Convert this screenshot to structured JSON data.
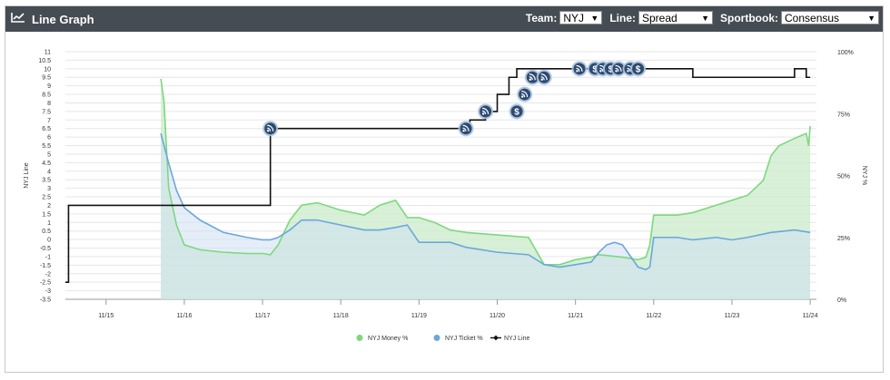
{
  "header": {
    "title": "Line Graph",
    "team_label": "Team:",
    "team_value": "NYJ",
    "line_label": "Line:",
    "line_value": "Spread",
    "sportsbook_label": "Sportbook:",
    "sportsbook_value": "Consensus"
  },
  "colors": {
    "money": "#7dd87d",
    "money_fill": "#cdeccd",
    "ticket": "#6aa7dc",
    "ticket_fill": "#cfe0f3",
    "overlap_fill": "#bfe3d6",
    "line": "#111111",
    "header_bg": "#454c53",
    "marker": "#2f4a70"
  },
  "chart_data": {
    "type": "line",
    "title": "",
    "ylabel_left": "NYJ Line",
    "ylabel_right": "NYJ %",
    "x_ticks": [
      "11/15",
      "11/16",
      "11/17",
      "11/18",
      "11/19",
      "11/20",
      "11/21",
      "11/22",
      "11/23",
      "11/24"
    ],
    "x_range": [
      -0.52,
      9.08
    ],
    "y_left_range": [
      -3.5,
      11
    ],
    "y_left_ticks": [
      "11",
      "10.5",
      "10",
      "9.5",
      "9",
      "8.5",
      "8",
      "7.5",
      "7",
      "6.5",
      "6",
      "5.5",
      "5",
      "4.5",
      "4",
      "3.5",
      "3",
      "2.5",
      "2",
      "1.5",
      "1",
      "0.5",
      "0",
      "-0.5",
      "-1",
      "-1.5",
      "-2",
      "-2.5",
      "-3",
      "-3.5"
    ],
    "y_right_range": [
      0,
      100
    ],
    "y_right_ticks": [
      "100%",
      "75%",
      "50%",
      "25%",
      "0%"
    ],
    "legend": [
      {
        "label": "NYJ Money %",
        "marker": "circle",
        "color_key": "money"
      },
      {
        "label": "NYJ Ticket %",
        "marker": "circle",
        "color_key": "ticket"
      },
      {
        "label": "NYJ Line",
        "marker": "line-diamond",
        "color_key": "line"
      }
    ],
    "series": [
      {
        "name": "NYJ Money %",
        "axis": "right",
        "x": [
          0.7,
          0.74,
          0.8,
          0.9,
          1.0,
          1.2,
          1.5,
          1.8,
          2.0,
          2.1,
          2.2,
          2.35,
          2.5,
          2.7,
          3.0,
          3.3,
          3.5,
          3.7,
          3.85,
          4.0,
          4.2,
          4.4,
          4.6,
          5.0,
          5.4,
          5.6,
          5.8,
          6.0,
          6.2,
          6.3,
          6.6,
          6.8,
          6.9,
          6.95,
          7.0,
          7.3,
          7.5,
          7.8,
          8.0,
          8.2,
          8.4,
          8.5,
          8.6,
          8.8,
          8.95,
          8.98,
          9.0
        ],
        "y": [
          89,
          80,
          45,
          30,
          22,
          20,
          19,
          18.5,
          18.5,
          18,
          22,
          32,
          38,
          39,
          36,
          34,
          38,
          40,
          33,
          33,
          31,
          28,
          27,
          26,
          25,
          14,
          14,
          16,
          17,
          18,
          17,
          16,
          17,
          22,
          34,
          34,
          35,
          38,
          40,
          42,
          48,
          58,
          62,
          65,
          67,
          62,
          70
        ]
      },
      {
        "name": "NYJ Ticket %",
        "axis": "right",
        "x": [
          0.7,
          0.8,
          0.9,
          1.0,
          1.2,
          1.5,
          1.8,
          2.0,
          2.1,
          2.2,
          2.35,
          2.5,
          2.7,
          3.0,
          3.3,
          3.5,
          3.7,
          3.85,
          4.0,
          4.2,
          4.4,
          4.6,
          5.0,
          5.4,
          5.6,
          5.8,
          6.0,
          6.2,
          6.3,
          6.4,
          6.5,
          6.6,
          6.8,
          6.9,
          6.95,
          7.0,
          7.3,
          7.5,
          7.8,
          8.0,
          8.2,
          8.5,
          8.8,
          9.0
        ],
        "y": [
          67,
          55,
          44,
          37,
          32,
          27,
          25,
          24,
          24,
          25,
          28,
          32,
          32,
          30,
          28,
          28,
          29,
          30,
          23,
          23,
          23,
          21,
          19,
          18,
          14,
          13,
          14,
          15,
          19,
          22,
          23,
          22,
          13,
          12,
          13,
          25,
          25,
          24,
          25,
          24,
          25,
          27,
          28,
          27
        ]
      },
      {
        "name": "NYJ Line",
        "axis": "left",
        "x": [
          -0.52,
          -0.48,
          -0.48,
          2.1,
          2.1,
          4.6,
          4.65,
          4.65,
          4.85,
          4.85,
          5.0,
          5.0,
          5.15,
          5.15,
          5.25,
          5.25,
          6.0,
          6.0,
          6.3,
          6.3,
          6.4,
          6.4,
          7.5,
          7.5,
          8.8,
          8.8,
          8.95,
          8.95,
          9.0
        ],
        "y": [
          -2.5,
          -2.5,
          2,
          2,
          6.5,
          6.5,
          6.5,
          7,
          7,
          7.5,
          7.5,
          8.5,
          8.5,
          9.5,
          9.5,
          10,
          10,
          10,
          10,
          10,
          10,
          10,
          10,
          9.5,
          9.5,
          10,
          10,
          9.5,
          9.5
        ]
      }
    ],
    "annotations": [
      {
        "x": 2.1,
        "y": 6.5,
        "icon": "rss-icon"
      },
      {
        "x": 4.6,
        "y": 6.5,
        "icon": "rss-icon"
      },
      {
        "x": 4.85,
        "y": 7.5,
        "icon": "rss-icon"
      },
      {
        "x": 5.25,
        "y": 7.5,
        "icon": "dollar-icon"
      },
      {
        "x": 5.35,
        "y": 8.5,
        "icon": "rss-icon"
      },
      {
        "x": 5.45,
        "y": 9.5,
        "icon": "rss-icon"
      },
      {
        "x": 5.6,
        "y": 9.5,
        "icon": "rss-icon"
      },
      {
        "x": 6.05,
        "y": 10,
        "icon": "rss-icon"
      },
      {
        "x": 6.25,
        "y": 10,
        "icon": "dollar-icon"
      },
      {
        "x": 6.35,
        "y": 10,
        "icon": "rss-icon"
      },
      {
        "x": 6.45,
        "y": 10,
        "icon": "dollar-icon"
      },
      {
        "x": 6.55,
        "y": 10,
        "icon": "rss-icon"
      },
      {
        "x": 6.7,
        "y": 10,
        "icon": "rss-icon"
      },
      {
        "x": 6.8,
        "y": 10,
        "icon": "dollar-icon"
      }
    ]
  }
}
